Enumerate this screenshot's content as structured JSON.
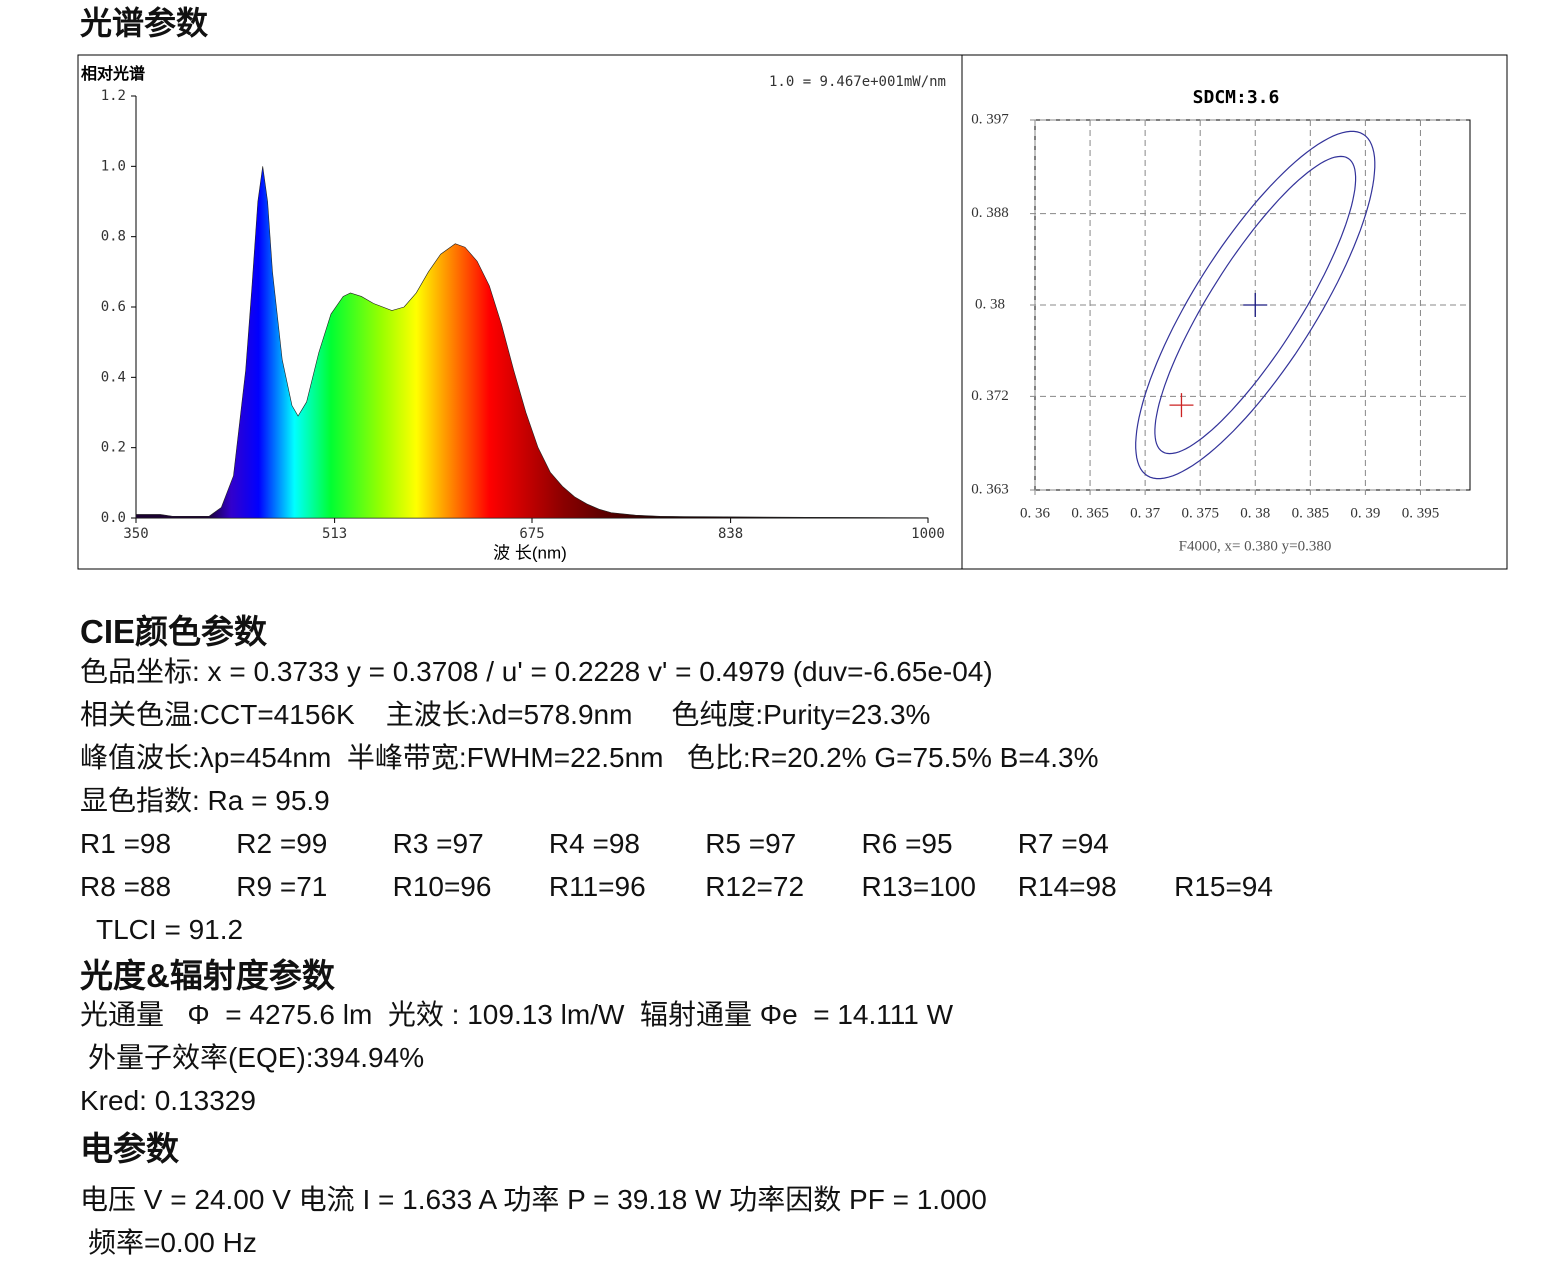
{
  "title": "光谱参数",
  "chart_data": [
    {
      "type": "area",
      "y_label": "相对光谱",
      "annotation": "1.0 = 9.467e+001mW/nm",
      "x_label": "波 长(nm)",
      "x": [
        350,
        360,
        370,
        380,
        390,
        400,
        410,
        420,
        430,
        440,
        445,
        450,
        454,
        458,
        462,
        470,
        478,
        483,
        490,
        500,
        510,
        520,
        526,
        535,
        545,
        560,
        570,
        580,
        590,
        600,
        612,
        620,
        630,
        640,
        650,
        660,
        670,
        680,
        690,
        700,
        710,
        720,
        730,
        740,
        760,
        780,
        800,
        850,
        900,
        1000
      ],
      "values": [
        0.01,
        0.01,
        0.01,
        0.005,
        0.005,
        0.005,
        0.005,
        0.03,
        0.12,
        0.42,
        0.65,
        0.9,
        1.0,
        0.9,
        0.7,
        0.45,
        0.32,
        0.29,
        0.33,
        0.47,
        0.58,
        0.63,
        0.64,
        0.63,
        0.61,
        0.59,
        0.6,
        0.64,
        0.7,
        0.75,
        0.78,
        0.77,
        0.73,
        0.66,
        0.55,
        0.42,
        0.3,
        0.2,
        0.13,
        0.09,
        0.06,
        0.04,
        0.025,
        0.015,
        0.008,
        0.005,
        0.004,
        0.003,
        0.002,
        0.001
      ],
      "xlim": [
        350,
        1000
      ],
      "xticks": [
        350,
        513,
        675,
        838,
        1000
      ],
      "ylim": [
        0,
        1.2
      ],
      "yticks": [
        {
          "value": 0,
          "label": "0.0"
        },
        0.2,
        0.4,
        0.6,
        0.8,
        {
          "value": 1,
          "label": "1.0"
        },
        1.2
      ]
    },
    {
      "type": "scatter",
      "title": "SDCM:3.6",
      "annotation": "F4000,  x= 0.380 y=0.380",
      "xlim": [
        0.36,
        0.3995
      ],
      "ylim": [
        0.363,
        0.397
      ],
      "xticks": [
        {
          "value": 0.36,
          "label": "0. 36"
        },
        {
          "value": 0.365,
          "label": "0. 365"
        },
        {
          "value": 0.37,
          "label": "0. 37"
        },
        {
          "value": 0.375,
          "label": "0. 375"
        },
        {
          "value": 0.38,
          "label": "0. 38"
        },
        {
          "value": 0.385,
          "label": "0. 385"
        },
        {
          "value": 0.39,
          "label": "0. 39"
        },
        {
          "value": 0.395,
          "label": "0. 395"
        }
      ],
      "yticks": [
        {
          "value": 0.363,
          "label": "0. 363"
        },
        {
          "value": 0.3716,
          "label": "0. 372"
        },
        {
          "value": 0.38,
          "label": "0. 38"
        },
        {
          "value": 0.3884,
          "label": "0. 388"
        },
        {
          "value": 0.397,
          "label": "0. 397"
        }
      ],
      "grid": true,
      "ellipse_color": "#33339a",
      "ellipses": [
        {
          "cx": 0.38,
          "cy": 0.38,
          "a": 0.0185,
          "b": 0.0055,
          "angle": 58
        },
        {
          "cx": 0.38,
          "cy": 0.38,
          "a": 0.0159,
          "b": 0.0041,
          "angle": 58
        }
      ],
      "points": [
        {
          "x": 0.38,
          "y": 0.38,
          "color": "#1a1a80"
        },
        {
          "x": 0.3733,
          "y": 0.3708,
          "color": "#cc2222"
        }
      ]
    }
  ],
  "cie": {
    "heading": "CIE颜色参数",
    "lines": [
      "色品坐标: x = 0.3733 y = 0.3708 / u' = 0.2228 v' = 0.4979 (duv=-6.65e-04)",
      "相关色温:CCT=4156K    主波长:λd=578.9nm     色纯度:Purity=23.3%",
      "峰值波长:λp=454nm  半峰带宽:FWHM=22.5nm   色比:R=20.2% G=75.5% B=4.3%",
      "显色指数: Ra = 95.9"
    ],
    "render_index": [
      [
        "R1 =98",
        "R2 =99",
        "R3 =97",
        "R4 =98",
        "R5 =97",
        "R6 =95",
        "R7 =94"
      ],
      [
        "R8 =88",
        "R9 =71",
        "R10=96",
        "R11=96",
        "R12=72",
        "R13=100",
        "R14=98",
        "R15=94"
      ]
    ],
    "tlci": "TLCI = 91.2"
  },
  "photometric": {
    "heading": "光度&辐射度参数",
    "lines": [
      "光通量   Φ  = 4275.6 lm  光效 : 109.13 lm/W  辐射通量 Φe  = 14.111 W",
      "外量子效率(EQE):394.94%",
      "Kred: 0.13329"
    ]
  },
  "electrical": {
    "heading": "电参数",
    "lines": [
      "电压 V = 24.00 V 电流 I = 1.633 A 功率 P = 39.18 W 功率因数 PF = 1.000",
      "频率=0.00 Hz"
    ]
  }
}
